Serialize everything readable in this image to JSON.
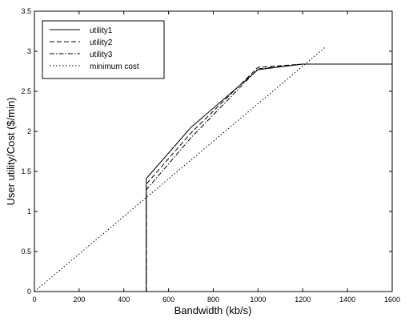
{
  "chart_data": {
    "type": "line",
    "title": "",
    "xlabel": "Bandwidth (kb/s)",
    "ylabel": "User utility/Cost ($/min)",
    "xlim": [
      0,
      1600
    ],
    "ylim": [
      0,
      3.5
    ],
    "xticks": [
      0,
      200,
      400,
      600,
      800,
      1000,
      1200,
      1400,
      1600
    ],
    "xtick_labels": [
      "0",
      "200",
      "400",
      "600",
      "800",
      "1000",
      "1200",
      "1400",
      "1600"
    ],
    "yticks": [
      0,
      0.5,
      1,
      1.5,
      2,
      2.5,
      3,
      3.5
    ],
    "ytick_labels": [
      "0",
      "0.5",
      "1",
      "1.5",
      "2",
      "2.5",
      "3",
      "3.5"
    ],
    "grid": false,
    "legend": "top-left",
    "series": [
      {
        "name": "utility1",
        "style": "solid",
        "x": [
          500,
          500,
          700,
          1000,
          1200,
          1600
        ],
        "y": [
          0,
          1.41,
          2.05,
          2.77,
          2.84,
          2.84
        ]
      },
      {
        "name": "utility2",
        "style": "dashed",
        "x": [
          500,
          500,
          700,
          1000,
          1200,
          1600
        ],
        "y": [
          0,
          1.34,
          1.98,
          2.8,
          2.84,
          2.84
        ]
      },
      {
        "name": "utility3",
        "style": "dashdot",
        "x": [
          500,
          500,
          700,
          1000,
          1200,
          1600
        ],
        "y": [
          0,
          1.27,
          1.92,
          2.78,
          2.84,
          2.84
        ]
      },
      {
        "name": "minimum cost",
        "style": "dotted",
        "x": [
          0,
          1300
        ],
        "y": [
          0,
          3.05
        ]
      }
    ]
  }
}
